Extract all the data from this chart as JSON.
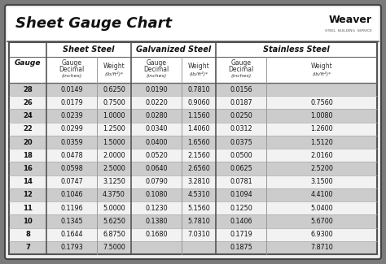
{
  "title": "Sheet Gauge Chart",
  "bg_outer": "#7a7a7a",
  "bg_inner": "#eeeeee",
  "title_bg": "#ffffff",
  "table_bg": "#ffffff",
  "row_dark": "#cccccc",
  "row_light": "#f2f2f2",
  "border_color": "#555555",
  "line_color": "#888888",
  "text_dark": "#111111",
  "gauges": [
    28,
    26,
    24,
    22,
    20,
    18,
    16,
    14,
    12,
    11,
    10,
    8,
    7
  ],
  "sheet_steel_dec": [
    "0.0149",
    "0.0179",
    "0.0239",
    "0.0299",
    "0.0359",
    "0.0478",
    "0.0598",
    "0.0747",
    "0.1046",
    "0.1196",
    "0.1345",
    "0.1644",
    "0.1793"
  ],
  "sheet_steel_wt": [
    "0.6250",
    "0.7500",
    "1.0000",
    "1.2500",
    "1.5000",
    "2.0000",
    "2.5000",
    "3.1250",
    "4.3750",
    "5.0000",
    "5.6250",
    "6.8750",
    "7.5000"
  ],
  "galv_dec": [
    "0.0190",
    "0.0220",
    "0.0280",
    "0.0340",
    "0.0400",
    "0.0520",
    "0.0640",
    "0.0790",
    "0.1080",
    "0.1230",
    "0.1380",
    "0.1680",
    ""
  ],
  "galv_wt": [
    "0.7810",
    "0.9060",
    "1.1560",
    "1.4060",
    "1.6560",
    "2.1560",
    "2.6560",
    "3.2810",
    "4.5310",
    "5.1560",
    "5.7810",
    "7.0310",
    ""
  ],
  "stain_dec": [
    "0.0156",
    "0.0187",
    "0.0250",
    "0.0312",
    "0.0375",
    "0.0500",
    "0.0625",
    "0.0781",
    "0.1094",
    "0.1250",
    "0.1406",
    "0.1719",
    "0.1875"
  ],
  "stain_wt": [
    "",
    "0.7560",
    "1.0080",
    "1.2600",
    "1.5120",
    "2.0160",
    "2.5200",
    "3.1500",
    "4.4100",
    "5.0400",
    "5.6700",
    "6.9300",
    "7.8710"
  ]
}
